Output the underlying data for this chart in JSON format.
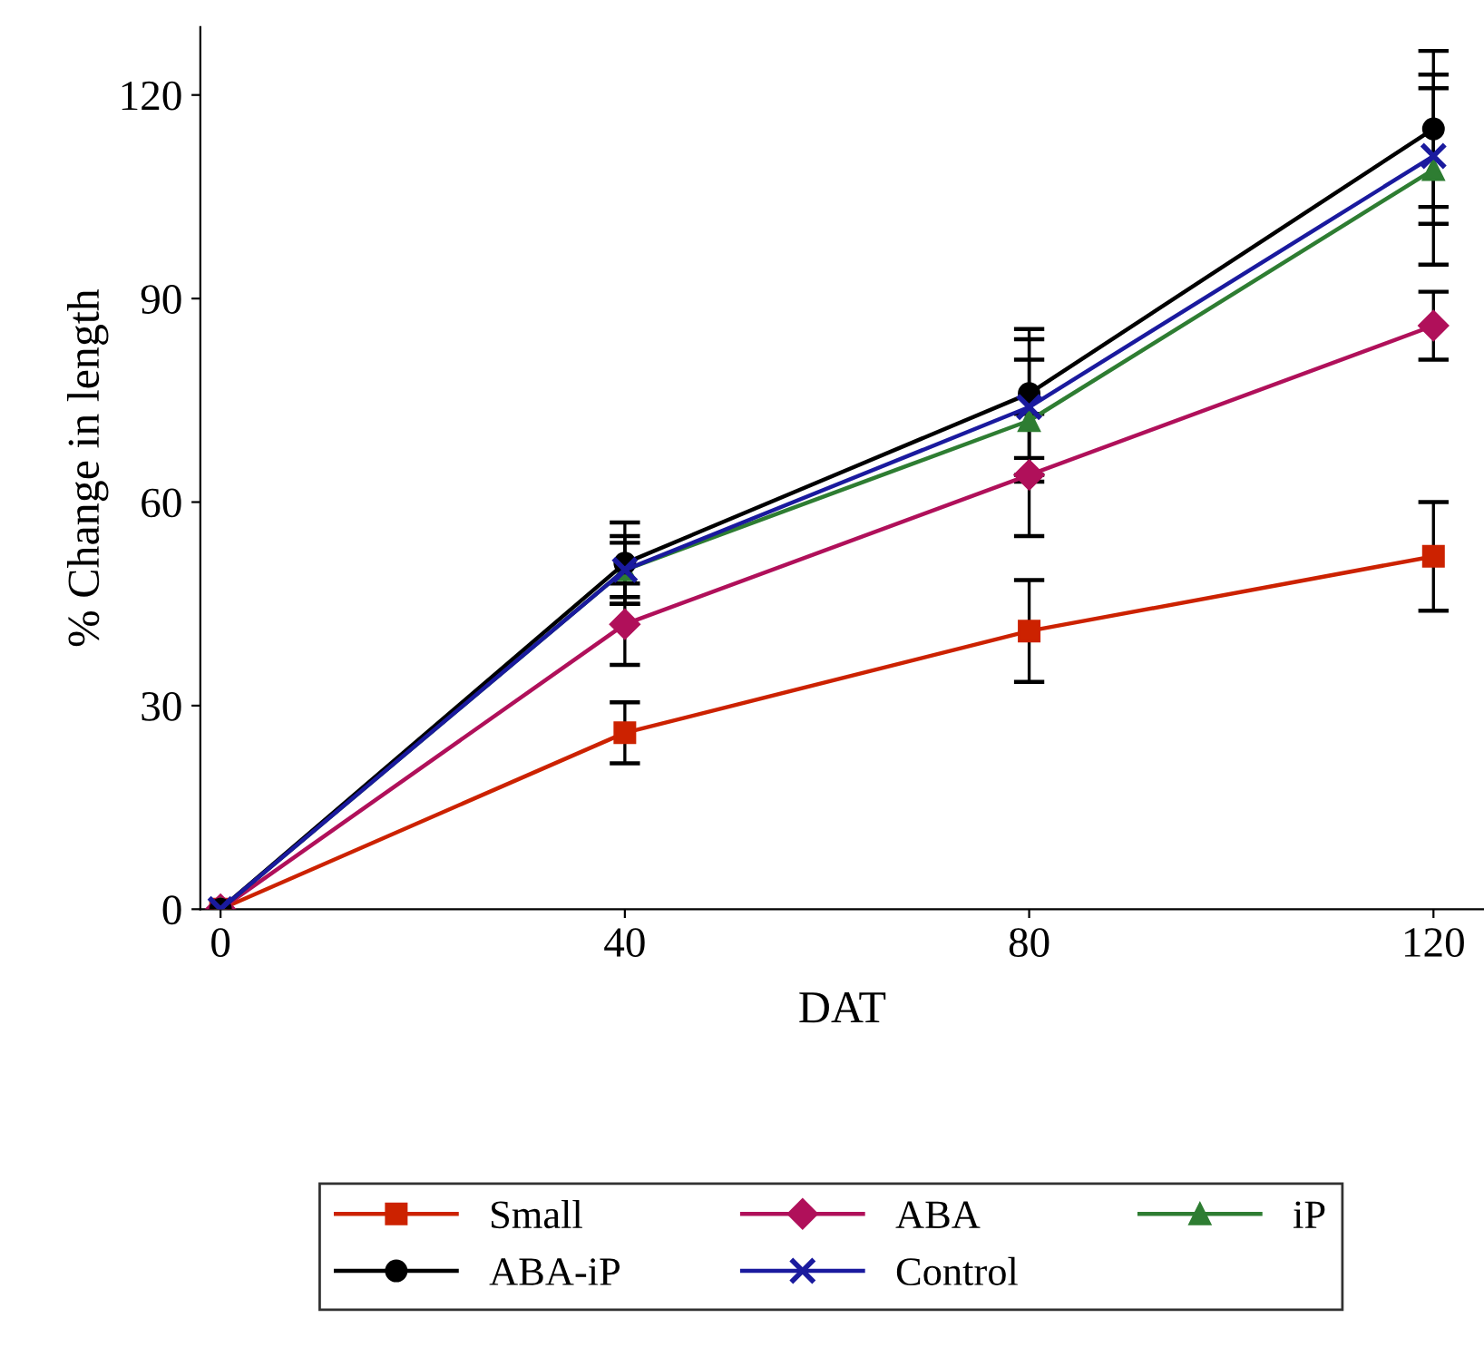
{
  "chart_data": {
    "type": "line",
    "xlabel": "DAT",
    "ylabel": "% Change in length",
    "x": [
      0,
      40,
      80,
      120
    ],
    "series": [
      {
        "name": "Small",
        "color": "#cc2200",
        "marker": "square",
        "values": [
          0,
          26,
          41,
          52
        ],
        "errors": [
          null,
          4.5,
          7.5,
          8
        ]
      },
      {
        "name": "ABA",
        "color": "#b0105a",
        "marker": "diamond",
        "values": [
          0,
          42,
          64,
          86
        ],
        "errors": [
          null,
          6,
          9,
          5
        ]
      },
      {
        "name": "iP",
        "color": "#2e7d32",
        "marker": "triangle",
        "values": [
          0,
          50,
          72,
          109
        ],
        "errors": [
          null,
          4,
          9,
          14
        ]
      },
      {
        "name": "ABA-iP",
        "color": "#000000",
        "marker": "circle",
        "values": [
          0,
          51,
          76,
          115
        ],
        "errors": [
          null,
          6,
          9.5,
          11.5
        ]
      },
      {
        "name": "Control",
        "color": "#1a1a9e",
        "marker": "cross",
        "values": [
          0,
          50,
          74,
          111
        ],
        "errors": [
          null,
          5,
          10,
          10
        ]
      }
    ],
    "xlim": [
      -2,
      125
    ],
    "ylim": [
      0,
      130
    ],
    "xticks": [
      0,
      40,
      80,
      120
    ],
    "yticks": [
      0,
      30,
      60,
      90,
      120
    ],
    "grid": false,
    "legend": "bottom",
    "line_style": "solid"
  }
}
